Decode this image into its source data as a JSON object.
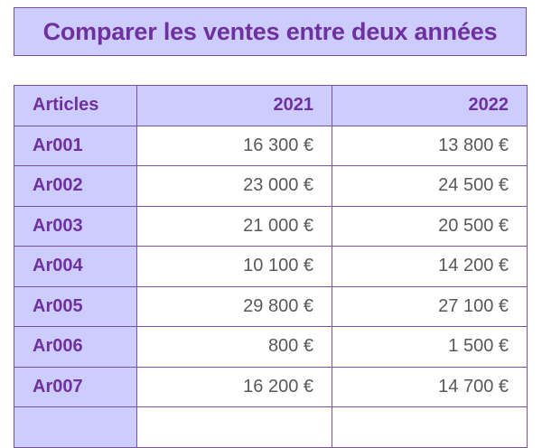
{
  "title": "Comparer les ventes entre deux années",
  "table": {
    "headers": [
      "Articles",
      "2021",
      "2022"
    ],
    "rows": [
      {
        "article": "Ar001",
        "y2021": "16 300 €",
        "y2022": "13 800 €"
      },
      {
        "article": "Ar002",
        "y2021": "23 000 €",
        "y2022": "24 500 €"
      },
      {
        "article": "Ar003",
        "y2021": "21 000 €",
        "y2022": "20 500 €"
      },
      {
        "article": "Ar004",
        "y2021": "10 100 €",
        "y2022": "14 200 €"
      },
      {
        "article": "Ar005",
        "y2021": "29 800 €",
        "y2022": "27 100 €"
      },
      {
        "article": "Ar006",
        "y2021": "800 €",
        "y2022": "1 500 €"
      },
      {
        "article": "Ar007",
        "y2021": "16 200 €",
        "y2022": "14 700 €"
      },
      {
        "article": "",
        "y2021": "",
        "y2022": ""
      }
    ]
  },
  "colors": {
    "header_fill": "#ccccff",
    "accent_text": "#7030a0",
    "value_text": "#595959",
    "border": "#7a4fa8"
  }
}
